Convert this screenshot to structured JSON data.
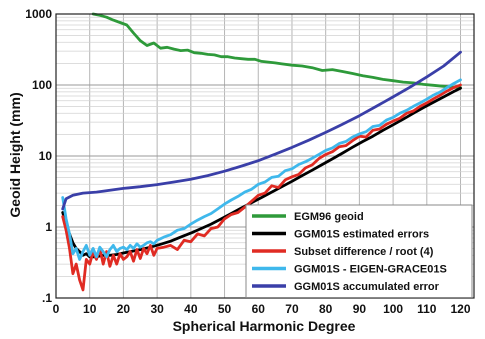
{
  "chart_data": {
    "type": "line",
    "title": "",
    "xlabel": "Spherical Harmonic Degree",
    "ylabel": "Geoid Height (mm)",
    "xlim": [
      0,
      124
    ],
    "ylim": [
      0.1,
      1000
    ],
    "yscale": "log",
    "grid": true,
    "legend_position": "bottom-right",
    "x_ticks": [
      "0",
      "10",
      "20",
      "30",
      "40",
      "50",
      "60",
      "70",
      "80",
      "90",
      "100",
      "110",
      "120"
    ],
    "y_ticks": [
      ".1",
      "1",
      "10",
      "100",
      "1000"
    ],
    "series": [
      {
        "name": "EGM96 geoid",
        "color": "#2e9a3a",
        "x": [
          11,
          13,
          15,
          17,
          19,
          21,
          23,
          25,
          27,
          29,
          31,
          33,
          35,
          37,
          39,
          41,
          43,
          45,
          47,
          49,
          51,
          53,
          55,
          57,
          59,
          61,
          63,
          65,
          67,
          70,
          73,
          76,
          79,
          82,
          85,
          88,
          91,
          94,
          97,
          100,
          103,
          106,
          109,
          112,
          115,
          118,
          120
        ],
        "y": [
          1000,
          960,
          900,
          820,
          760,
          700,
          540,
          420,
          360,
          390,
          330,
          340,
          320,
          305,
          310,
          285,
          280,
          270,
          265,
          250,
          250,
          240,
          235,
          230,
          230,
          215,
          210,
          205,
          198,
          190,
          185,
          175,
          160,
          165,
          155,
          145,
          135,
          128,
          120,
          115,
          110,
          107,
          102,
          99,
          96,
          93,
          92
        ]
      },
      {
        "name": "GGM01S estimated errors",
        "color": "#000000",
        "x": [
          2,
          3,
          4,
          5,
          6,
          7,
          8,
          9,
          10,
          12,
          14,
          16,
          18,
          20,
          22,
          25,
          28,
          31,
          34,
          37,
          40,
          43,
          46,
          49,
          52,
          55,
          58,
          61,
          64,
          67,
          70,
          73,
          76,
          79,
          82,
          85,
          88,
          91,
          94,
          97,
          100,
          103,
          106,
          109,
          112,
          115,
          118,
          120
        ],
        "y": [
          1.6,
          1.1,
          0.8,
          0.6,
          0.5,
          0.45,
          0.4,
          0.42,
          0.38,
          0.38,
          0.4,
          0.4,
          0.41,
          0.43,
          0.45,
          0.48,
          0.52,
          0.57,
          0.63,
          0.72,
          0.82,
          0.95,
          1.1,
          1.3,
          1.55,
          1.85,
          2.2,
          2.6,
          3.1,
          3.7,
          4.4,
          5.3,
          6.3,
          7.6,
          9.1,
          11,
          13.3,
          16,
          19,
          23,
          27.5,
          33,
          40,
          48,
          57,
          68,
          81,
          90
        ]
      },
      {
        "name": "Subset difference / root (4)",
        "color": "#e02b23",
        "x": [
          2,
          3,
          4,
          5,
          6,
          7,
          8,
          9,
          10,
          11,
          12,
          13,
          14,
          15,
          16,
          17,
          18,
          19,
          20,
          21,
          22,
          23,
          24,
          25,
          26,
          27,
          28,
          29,
          30,
          32,
          34,
          36,
          38,
          40,
          42,
          44,
          46,
          48,
          50,
          52,
          54,
          56,
          58,
          60,
          62,
          64,
          66,
          68,
          70,
          72,
          74,
          76,
          78,
          80,
          82,
          84,
          86,
          88,
          90,
          92,
          94,
          96,
          98,
          100,
          102,
          104,
          106,
          108,
          110,
          112,
          114,
          116,
          118,
          120
        ],
        "y": [
          1.4,
          0.9,
          0.5,
          0.22,
          0.3,
          0.18,
          0.13,
          0.35,
          0.3,
          0.45,
          0.35,
          0.5,
          0.3,
          0.45,
          0.28,
          0.4,
          0.3,
          0.42,
          0.35,
          0.38,
          0.45,
          0.33,
          0.48,
          0.36,
          0.5,
          0.42,
          0.55,
          0.4,
          0.5,
          0.52,
          0.55,
          0.48,
          0.65,
          0.62,
          0.8,
          0.75,
          0.95,
          1.0,
          1.3,
          1.5,
          1.6,
          1.9,
          2.3,
          2.8,
          3.0,
          3.8,
          3.6,
          4.6,
          5.1,
          5.5,
          6.8,
          7.5,
          9.2,
          10.5,
          11.5,
          13.5,
          14.0,
          16.5,
          19.0,
          18.5,
          23.0,
          24.0,
          28.0,
          31.0,
          34.0,
          40.0,
          43.0,
          50.0,
          56.0,
          64.0,
          72.0,
          82.0,
          92.0,
          100.0
        ]
      },
      {
        "name": "GGM01S - EIGEN-GRACE01S",
        "color": "#3fb8ec",
        "x": [
          2,
          3,
          4,
          5,
          6,
          7,
          8,
          9,
          10,
          11,
          12,
          13,
          14,
          15,
          16,
          17,
          18,
          19,
          20,
          21,
          22,
          23,
          24,
          25,
          26,
          27,
          28,
          29,
          30,
          32,
          34,
          36,
          38,
          40,
          42,
          44,
          46,
          48,
          50,
          52,
          54,
          56,
          58,
          60,
          62,
          64,
          66,
          68,
          70,
          72,
          74,
          76,
          78,
          80,
          82,
          84,
          86,
          88,
          90,
          92,
          94,
          96,
          98,
          100,
          102,
          104,
          106,
          108,
          110,
          112,
          114,
          116,
          118,
          120
        ],
        "y": [
          2.6,
          1.3,
          0.8,
          0.42,
          0.5,
          0.35,
          0.45,
          0.55,
          0.4,
          0.5,
          0.38,
          0.52,
          0.45,
          0.38,
          0.48,
          0.55,
          0.45,
          0.5,
          0.52,
          0.48,
          0.55,
          0.5,
          0.58,
          0.52,
          0.55,
          0.6,
          0.62,
          0.58,
          0.65,
          0.72,
          0.78,
          0.9,
          0.95,
          1.1,
          1.25,
          1.4,
          1.55,
          1.8,
          2.1,
          2.4,
          2.7,
          3.1,
          3.4,
          4.0,
          4.3,
          5.0,
          5.2,
          6.2,
          6.6,
          7.6,
          8.3,
          9.3,
          10.5,
          12.0,
          13.0,
          15.0,
          16.0,
          18.5,
          20.5,
          22.0,
          26.0,
          27.0,
          32.0,
          35.0,
          40.0,
          44.0,
          50.0,
          56.0,
          63.0,
          72.0,
          80.0,
          92.0,
          105.0,
          118.0
        ]
      },
      {
        "name": "GGM01S accumulated error",
        "color": "#3a3fa8",
        "x": [
          2,
          3,
          5,
          8,
          12,
          16,
          20,
          25,
          30,
          35,
          40,
          45,
          50,
          55,
          60,
          65,
          70,
          75,
          80,
          85,
          90,
          95,
          100,
          105,
          110,
          115,
          120
        ],
        "y": [
          1.8,
          2.5,
          2.8,
          3.0,
          3.1,
          3.3,
          3.5,
          3.7,
          3.95,
          4.3,
          4.7,
          5.3,
          6.1,
          7.2,
          8.6,
          10.6,
          13.2,
          16.7,
          21.5,
          28.0,
          37.0,
          50.0,
          68.0,
          93.0,
          130.0,
          185.0,
          290.0
        ]
      }
    ]
  }
}
